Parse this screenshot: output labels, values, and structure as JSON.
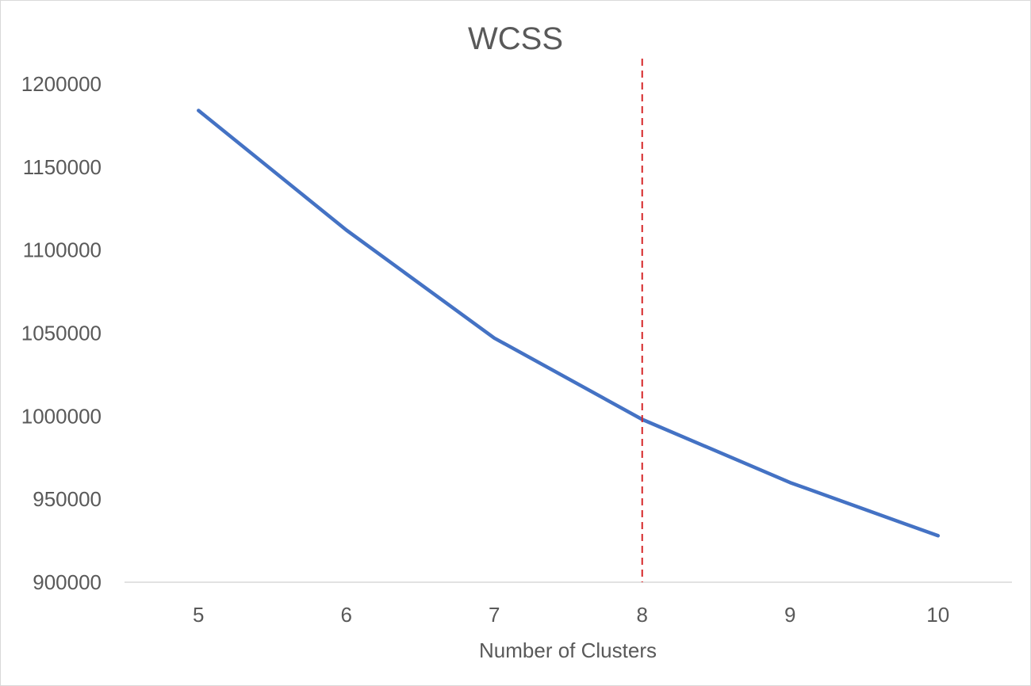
{
  "chart_data": {
    "type": "line",
    "title": "WCSS",
    "xlabel": "Number of Clusters",
    "ylabel": "",
    "categories": [
      "5",
      "6",
      "7",
      "8",
      "9",
      "10"
    ],
    "y_tick_labels": [
      "900000",
      "950000",
      "1000000",
      "1050000",
      "1100000",
      "1150000",
      "1200000"
    ],
    "ylim": [
      900000,
      1200000
    ],
    "grid": false,
    "legend": "none",
    "series": [
      {
        "values": [
          1184000,
          1112000,
          1047000,
          998000,
          960000,
          928000
        ],
        "color": "#4472c4"
      }
    ],
    "annotations": [
      {
        "type": "vertical-dashed-line",
        "x": "8",
        "color": "#d62728"
      }
    ]
  }
}
